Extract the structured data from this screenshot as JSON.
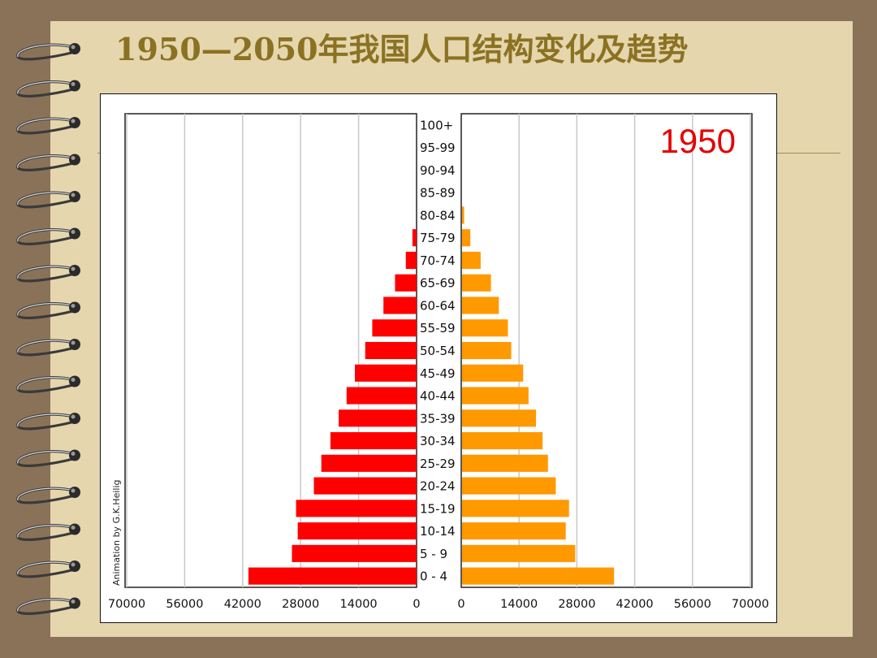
{
  "slide": {
    "title": "1950—2050年我国人口结构变化及趋势"
  },
  "colors": {
    "male": "#ff0000",
    "female": "#ff9900",
    "year_label": "#e60000",
    "title": "#8b7222",
    "paper": "#e5d6ae",
    "background": "#8a7259"
  },
  "chart_data": {
    "type": "bar",
    "subtype": "population-pyramid",
    "year_label": "1950",
    "credit": "Animation by G.K.Heilig",
    "xlim": [
      0,
      70000
    ],
    "x_ticks_left": [
      "70000",
      "56000",
      "42000",
      "28000",
      "14000",
      "0"
    ],
    "x_ticks_right": [
      "0",
      "14000",
      "28000",
      "42000",
      "56000",
      "70000"
    ],
    "tick_values": [
      0,
      14000,
      28000,
      42000,
      56000,
      70000
    ],
    "grid": true,
    "categories": [
      "100+",
      "95-99",
      "90-94",
      "85-89",
      "80-84",
      "75-79",
      "70-74",
      "65-69",
      "60-64",
      "55-59",
      "50-54",
      "45-49",
      "40-44",
      "35-39",
      "30-34",
      "25-29",
      "20-24",
      "15-19",
      "10-14",
      "5 - 9",
      "0 - 4"
    ],
    "series": [
      {
        "side": "left",
        "values": [
          0,
          0,
          0,
          0,
          0,
          1000,
          2600,
          5200,
          8000,
          10700,
          12400,
          14900,
          16900,
          18800,
          20800,
          23000,
          24800,
          29100,
          28700,
          30100,
          40600
        ]
      },
      {
        "side": "right",
        "values": [
          0,
          0,
          0,
          0,
          700,
          2200,
          4700,
          7200,
          9100,
          11300,
          12100,
          15000,
          16300,
          18100,
          19700,
          21000,
          22900,
          26100,
          25300,
          27600,
          37000
        ]
      }
    ]
  }
}
